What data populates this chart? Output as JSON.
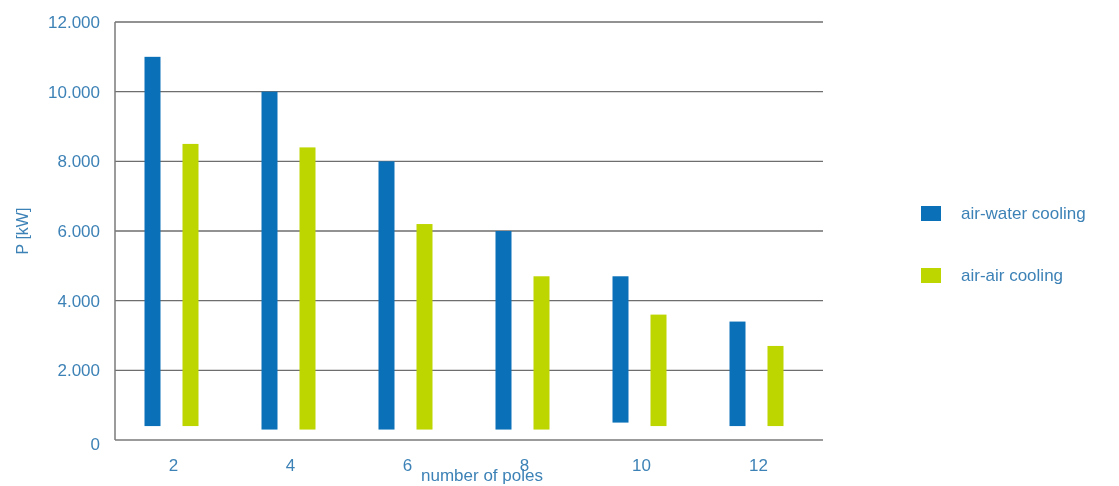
{
  "chart_data": {
    "type": "bar",
    "xlabel": "number of poles",
    "ylabel": "P [kW]",
    "categories": [
      "2",
      "4",
      "6",
      "8",
      "10",
      "12"
    ],
    "series": [
      {
        "name": "air-water cooling",
        "color": "#0a70b8",
        "values": [
          10600,
          9700,
          7700,
          5700,
          4200,
          3000
        ],
        "base": [
          400,
          300,
          300,
          300,
          500,
          400
        ]
      },
      {
        "name": "air-air cooling",
        "color": "#bed600",
        "values": [
          8100,
          8100,
          5900,
          4400,
          3200,
          2300
        ],
        "base": [
          400,
          300,
          300,
          300,
          400,
          400
        ]
      }
    ],
    "ylim": [
      0,
      12000
    ],
    "yticks": [
      {
        "value": 0,
        "label": "0"
      },
      {
        "value": 2000,
        "label": "2.000"
      },
      {
        "value": 4000,
        "label": "4.000"
      },
      {
        "value": 6000,
        "label": "6.000"
      },
      {
        "value": 8000,
        "label": "8.000"
      },
      {
        "value": 10000,
        "label": "10.000"
      },
      {
        "value": 12000,
        "label": "12.000"
      }
    ],
    "grid": "y",
    "legend": "right"
  }
}
